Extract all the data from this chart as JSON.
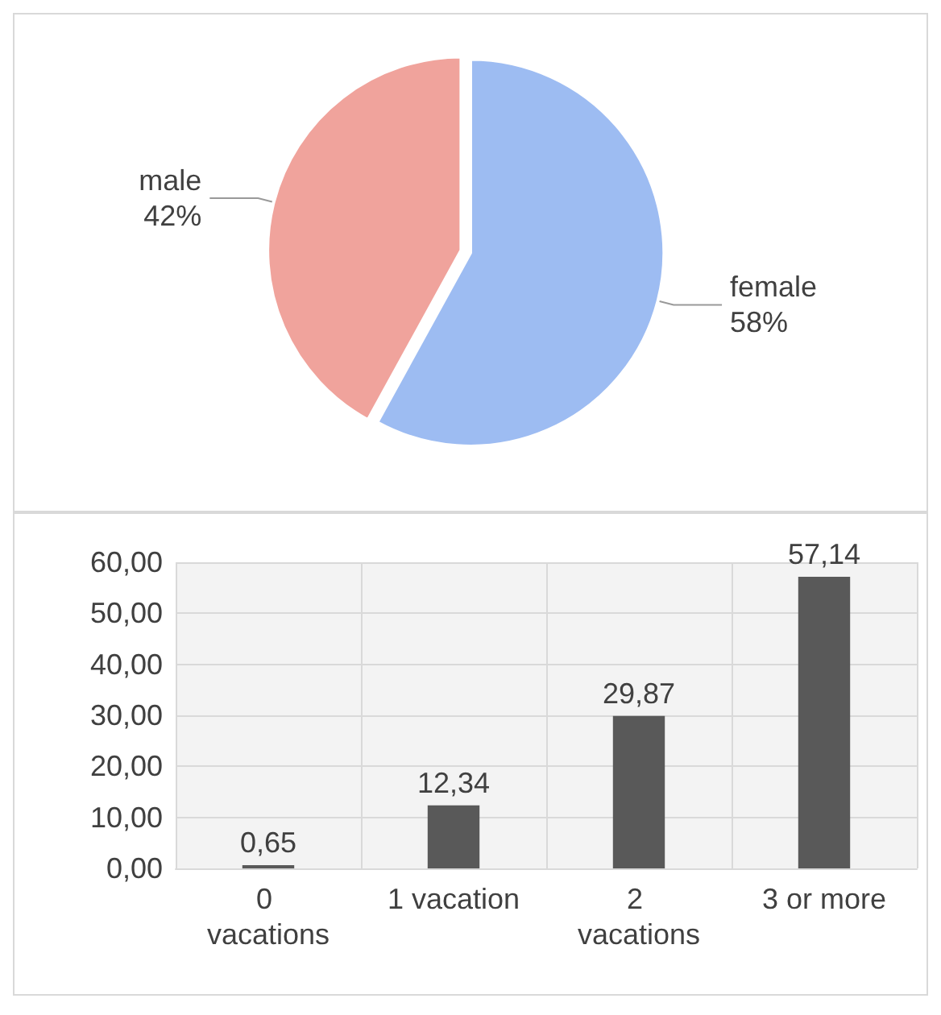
{
  "chart_data": [
    {
      "type": "pie",
      "categories": [
        "female",
        "male"
      ],
      "values": [
        58,
        42
      ],
      "colors": [
        "#9dbcf2",
        "#f0a39c"
      ],
      "value_labels": [
        "58%",
        "42%"
      ]
    },
    {
      "type": "bar",
      "categories": [
        "0 vacations",
        "1 vacation",
        "2 vacations",
        "3 or more"
      ],
      "values": [
        0.65,
        12.34,
        29.87,
        57.14
      ],
      "color": "#595959",
      "value_labels": [
        "0,65",
        "12,34",
        "29,87",
        "57,14"
      ],
      "ylim": [
        0,
        60
      ],
      "yticks": [
        {
          "value": 0,
          "label": "0,00"
        },
        {
          "value": 10,
          "label": "10,00"
        },
        {
          "value": 20,
          "label": "20,00"
        },
        {
          "value": 30,
          "label": "30,00"
        },
        {
          "value": 40,
          "label": "40,00"
        },
        {
          "value": 50,
          "label": "50,00"
        },
        {
          "value": 60,
          "label": "60,00"
        }
      ],
      "grid": true
    }
  ]
}
